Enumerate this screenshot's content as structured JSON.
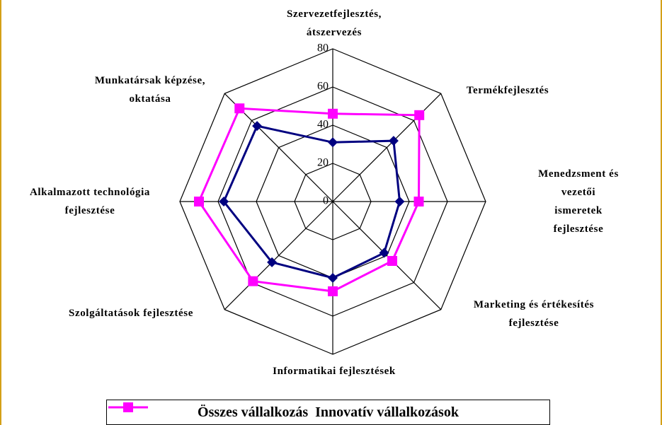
{
  "chart_data": {
    "type": "radar",
    "categories": [
      "Szervezetfejlesztés,\nátszervezés",
      "Termékfejlesztés",
      "Menedzsment és vezetői\nismeretek fejlesztése",
      "Marketing és értékesítés\nfejlesztése",
      "Informatikai fejlesztések",
      "Szolgáltatások fejlesztése",
      "Alkalmazott technológia\nfejlesztése",
      "Munkatársak képzése,\noktatása"
    ],
    "series": [
      {
        "name": "Összes vállalkozás",
        "color": "#000080",
        "marker": "diamond",
        "values": [
          31,
          45,
          35,
          38,
          40,
          45,
          57,
          56
        ]
      },
      {
        "name": "Innovatív vállalkozások",
        "color": "#ff00ff",
        "marker": "square",
        "values": [
          46,
          64,
          45,
          44,
          47,
          59,
          70,
          69
        ]
      }
    ],
    "ylim": [
      0,
      80
    ],
    "yticks": [
      0,
      20,
      40,
      60,
      80
    ],
    "grid": true,
    "legend": "bottom"
  }
}
